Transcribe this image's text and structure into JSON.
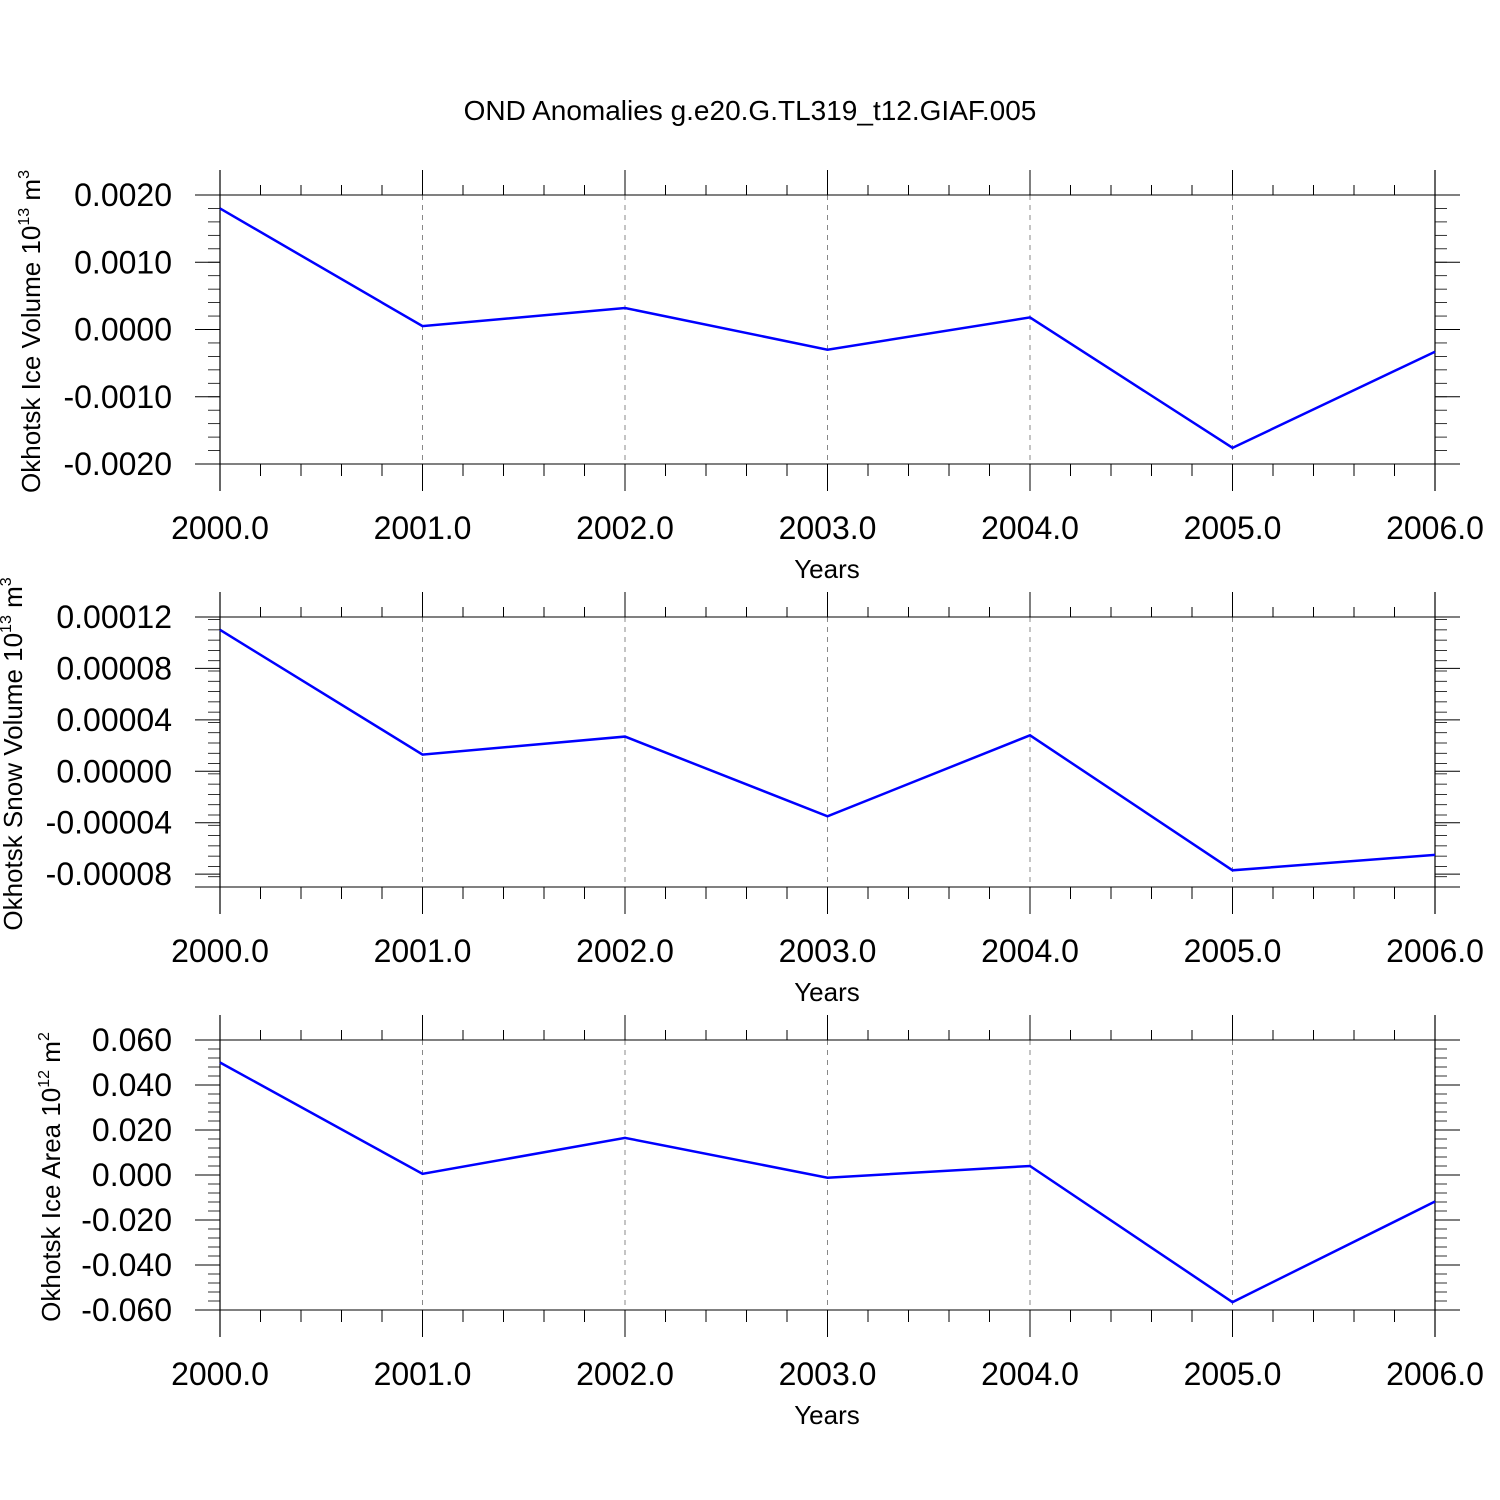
{
  "figure": {
    "title": "OND Anomalies g.e20.G.TL319_t12.GIAF.005"
  },
  "colors": {
    "line": "#0000ff",
    "axes": "#000000",
    "grid": "#888888"
  },
  "chart_data": [
    {
      "type": "line",
      "title": "OND Anomalies g.e20.G.TL319_t12.GIAF.005",
      "xlabel": "Years",
      "ylabel": {
        "main": "Okhotsk Ice Volume 10",
        "exp": "13",
        "unit": " m",
        "unit_exp": "3"
      },
      "x": [
        2000,
        2001,
        2002,
        2003,
        2004,
        2005,
        2006
      ],
      "xticks": [
        "2000.0",
        "2001.0",
        "2002.0",
        "2003.0",
        "2004.0",
        "2005.0",
        "2006.0"
      ],
      "xlim": [
        2000,
        2006.12
      ],
      "ylim": [
        -0.002,
        0.002
      ],
      "yticks": [
        0.002,
        0.001,
        0,
        -0.001,
        -0.002
      ],
      "ytick_labels": [
        "0.0020",
        "0.0010",
        "0.0000",
        "-0.0010",
        "-0.0020"
      ],
      "minor_y_step": 0.0002,
      "series": [
        {
          "values": [
            0.0018,
            5e-05,
            0.00032,
            -0.0003,
            0.00018,
            -0.00176,
            -0.00033
          ]
        }
      ],
      "grid": "x-dashed"
    },
    {
      "type": "line",
      "xlabel": "Years",
      "ylabel": {
        "main": "Okhotsk Snow Volume 10",
        "exp": "13",
        "unit": " m",
        "unit_exp": "3"
      },
      "x": [
        2000,
        2001,
        2002,
        2003,
        2004,
        2005,
        2006
      ],
      "xticks": [
        "2000.0",
        "2001.0",
        "2002.0",
        "2003.0",
        "2004.0",
        "2005.0",
        "2006.0"
      ],
      "xlim": [
        2000,
        2006.12
      ],
      "ylim": [
        -9e-05,
        0.00012
      ],
      "yticks": [
        0.00012,
        8e-05,
        4e-05,
        0,
        -4e-05,
        -8e-05
      ],
      "ytick_labels": [
        "0.00012",
        "0.00008",
        "0.00004",
        "0.00000",
        "-0.00004",
        "-0.00008"
      ],
      "minor_y_step": 8e-06,
      "series": [
        {
          "values": [
            0.00011,
            1.3e-05,
            2.7e-05,
            -3.5e-05,
            2.8e-05,
            -7.7e-05,
            -6.5e-05
          ]
        }
      ],
      "grid": "x-dashed"
    },
    {
      "type": "line",
      "xlabel": "Years",
      "ylabel": {
        "main": "Okhotsk Ice Area 10",
        "exp": "12",
        "unit": " m",
        "unit_exp": "2"
      },
      "x": [
        2000,
        2001,
        2002,
        2003,
        2004,
        2005,
        2006
      ],
      "xticks": [
        "2000.0",
        "2001.0",
        "2002.0",
        "2003.0",
        "2004.0",
        "2005.0",
        "2006.0"
      ],
      "xlim": [
        2000,
        2006.12
      ],
      "ylim": [
        -0.06,
        0.06
      ],
      "yticks": [
        0.06,
        0.04,
        0.02,
        0,
        -0.02,
        -0.04,
        -0.06
      ],
      "ytick_labels": [
        "0.060",
        "0.040",
        "0.020",
        "0.000",
        "-0.020",
        "-0.040",
        "-0.060"
      ],
      "minor_y_step": 0.004,
      "series": [
        {
          "values": [
            0.05,
            0.0005,
            0.0165,
            -0.0012,
            0.004,
            -0.0565,
            -0.0118
          ]
        }
      ],
      "grid": "x-dashed"
    }
  ]
}
